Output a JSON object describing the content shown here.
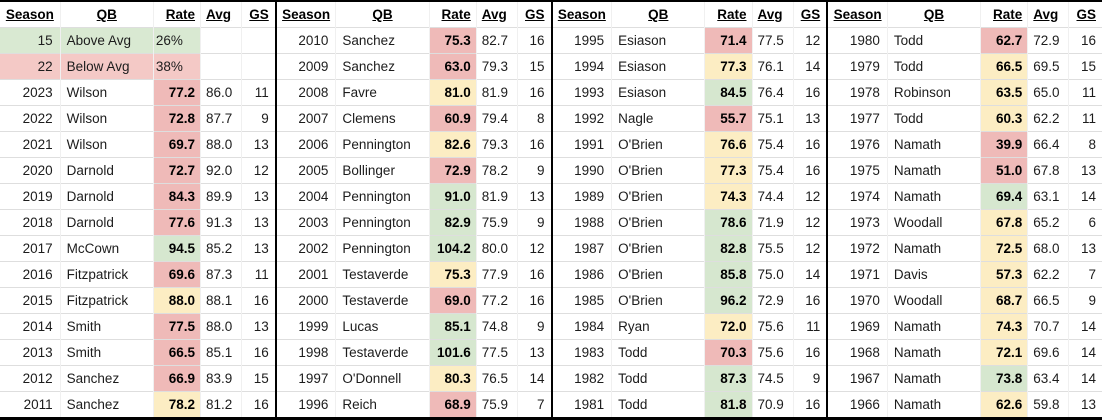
{
  "chart_data": {
    "type": "table",
    "description": "Jets starting QB passer rating by season vs league average, conditionally color-coded",
    "columns": [
      "Season",
      "QB",
      "Rate",
      "Avg",
      "GS"
    ],
    "legend": {
      "above": {
        "count": "15",
        "label": "Above Avg",
        "pct": "26%",
        "tone": "green"
      },
      "below": {
        "count": "22",
        "label": "Below Avg",
        "pct": "38%",
        "tone": "red"
      }
    },
    "colors": {
      "rate_above": "#d6e7cf",
      "rate_near": "#fcedc3",
      "rate_below": "#efbab8",
      "summary_green": "#d9e9d2",
      "summary_red": "#f4c9c6",
      "grid_line": "#dedede",
      "panel_border": "#000000"
    },
    "panels": [
      {
        "rows": [
          {
            "summary": true,
            "season": "15",
            "qb": "Above Avg",
            "rate": "26%",
            "avg": "",
            "gs": "",
            "tone": "green"
          },
          {
            "summary": true,
            "season": "22",
            "qb": "Below Avg",
            "rate": "38%",
            "avg": "",
            "gs": "",
            "tone": "red"
          },
          {
            "season": "2023",
            "qb": "Wilson",
            "rate": "77.2",
            "avg": "86.0",
            "gs": "11",
            "tone": "red"
          },
          {
            "season": "2022",
            "qb": "Wilson",
            "rate": "72.8",
            "avg": "87.7",
            "gs": "9",
            "tone": "red"
          },
          {
            "season": "2021",
            "qb": "Wilson",
            "rate": "69.7",
            "avg": "88.0",
            "gs": "13",
            "tone": "red"
          },
          {
            "season": "2020",
            "qb": "Darnold",
            "rate": "72.7",
            "avg": "92.0",
            "gs": "12",
            "tone": "red"
          },
          {
            "season": "2019",
            "qb": "Darnold",
            "rate": "84.3",
            "avg": "89.9",
            "gs": "13",
            "tone": "red"
          },
          {
            "season": "2018",
            "qb": "Darnold",
            "rate": "77.6",
            "avg": "91.3",
            "gs": "13",
            "tone": "red"
          },
          {
            "season": "2017",
            "qb": "McCown",
            "rate": "94.5",
            "avg": "85.2",
            "gs": "13",
            "tone": "green"
          },
          {
            "season": "2016",
            "qb": "Fitzpatrick",
            "rate": "69.6",
            "avg": "87.3",
            "gs": "11",
            "tone": "red"
          },
          {
            "season": "2015",
            "qb": "Fitzpatrick",
            "rate": "88.0",
            "avg": "88.1",
            "gs": "16",
            "tone": "yellow"
          },
          {
            "season": "2014",
            "qb": "Smith",
            "rate": "77.5",
            "avg": "88.0",
            "gs": "13",
            "tone": "red"
          },
          {
            "season": "2013",
            "qb": "Smith",
            "rate": "66.5",
            "avg": "85.1",
            "gs": "16",
            "tone": "red"
          },
          {
            "season": "2012",
            "qb": "Sanchez",
            "rate": "66.9",
            "avg": "83.9",
            "gs": "15",
            "tone": "red"
          },
          {
            "season": "2011",
            "qb": "Sanchez",
            "rate": "78.2",
            "avg": "81.2",
            "gs": "16",
            "tone": "yellow"
          }
        ]
      },
      {
        "rows": [
          {
            "season": "2010",
            "qb": "Sanchez",
            "rate": "75.3",
            "avg": "82.7",
            "gs": "16",
            "tone": "red"
          },
          {
            "season": "2009",
            "qb": "Sanchez",
            "rate": "63.0",
            "avg": "79.3",
            "gs": "15",
            "tone": "red"
          },
          {
            "season": "2008",
            "qb": "Favre",
            "rate": "81.0",
            "avg": "81.9",
            "gs": "16",
            "tone": "yellow"
          },
          {
            "season": "2007",
            "qb": "Clemens",
            "rate": "60.9",
            "avg": "79.4",
            "gs": "8",
            "tone": "red"
          },
          {
            "season": "2006",
            "qb": "Pennington",
            "rate": "82.6",
            "avg": "79.3",
            "gs": "16",
            "tone": "yellow"
          },
          {
            "season": "2005",
            "qb": "Bollinger",
            "rate": "72.9",
            "avg": "78.2",
            "gs": "9",
            "tone": "red"
          },
          {
            "season": "2004",
            "qb": "Pennington",
            "rate": "91.0",
            "avg": "81.9",
            "gs": "13",
            "tone": "green"
          },
          {
            "season": "2003",
            "qb": "Pennington",
            "rate": "82.9",
            "avg": "75.9",
            "gs": "9",
            "tone": "green"
          },
          {
            "season": "2002",
            "qb": "Pennington",
            "rate": "104.2",
            "avg": "80.0",
            "gs": "12",
            "tone": "green"
          },
          {
            "season": "2001",
            "qb": "Testaverde",
            "rate": "75.3",
            "avg": "77.9",
            "gs": "16",
            "tone": "yellow"
          },
          {
            "season": "2000",
            "qb": "Testaverde",
            "rate": "69.0",
            "avg": "77.2",
            "gs": "16",
            "tone": "red"
          },
          {
            "season": "1999",
            "qb": "Lucas",
            "rate": "85.1",
            "avg": "74.8",
            "gs": "9",
            "tone": "green"
          },
          {
            "season": "1998",
            "qb": "Testaverde",
            "rate": "101.6",
            "avg": "77.5",
            "gs": "13",
            "tone": "green"
          },
          {
            "season": "1997",
            "qb": "O'Donnell",
            "rate": "80.3",
            "avg": "76.5",
            "gs": "14",
            "tone": "yellow"
          },
          {
            "season": "1996",
            "qb": "Reich",
            "rate": "68.9",
            "avg": "75.9",
            "gs": "7",
            "tone": "red"
          }
        ]
      },
      {
        "rows": [
          {
            "season": "1995",
            "qb": "Esiason",
            "rate": "71.4",
            "avg": "77.5",
            "gs": "12",
            "tone": "red"
          },
          {
            "season": "1994",
            "qb": "Esiason",
            "rate": "77.3",
            "avg": "76.1",
            "gs": "14",
            "tone": "yellow"
          },
          {
            "season": "1993",
            "qb": "Esiason",
            "rate": "84.5",
            "avg": "76.4",
            "gs": "16",
            "tone": "green"
          },
          {
            "season": "1992",
            "qb": "Nagle",
            "rate": "55.7",
            "avg": "75.1",
            "gs": "13",
            "tone": "red"
          },
          {
            "season": "1991",
            "qb": "O'Brien",
            "rate": "76.6",
            "avg": "75.4",
            "gs": "16",
            "tone": "yellow"
          },
          {
            "season": "1990",
            "qb": "O'Brien",
            "rate": "77.3",
            "avg": "75.4",
            "gs": "16",
            "tone": "yellow"
          },
          {
            "season": "1989",
            "qb": "O'Brien",
            "rate": "74.3",
            "avg": "74.4",
            "gs": "12",
            "tone": "yellow"
          },
          {
            "season": "1988",
            "qb": "O'Brien",
            "rate": "78.6",
            "avg": "71.9",
            "gs": "12",
            "tone": "green"
          },
          {
            "season": "1987",
            "qb": "O'Brien",
            "rate": "82.8",
            "avg": "75.5",
            "gs": "12",
            "tone": "green"
          },
          {
            "season": "1986",
            "qb": "O'Brien",
            "rate": "85.8",
            "avg": "75.0",
            "gs": "14",
            "tone": "green"
          },
          {
            "season": "1985",
            "qb": "O'Brien",
            "rate": "96.2",
            "avg": "72.9",
            "gs": "16",
            "tone": "green"
          },
          {
            "season": "1984",
            "qb": "Ryan",
            "rate": "72.0",
            "avg": "75.6",
            "gs": "11",
            "tone": "yellow"
          },
          {
            "season": "1983",
            "qb": "Todd",
            "rate": "70.3",
            "avg": "75.6",
            "gs": "16",
            "tone": "red"
          },
          {
            "season": "1982",
            "qb": "Todd",
            "rate": "87.3",
            "avg": "74.5",
            "gs": "9",
            "tone": "green"
          },
          {
            "season": "1981",
            "qb": "Todd",
            "rate": "81.8",
            "avg": "70.9",
            "gs": "16",
            "tone": "green"
          }
        ]
      },
      {
        "rows": [
          {
            "season": "1980",
            "qb": "Todd",
            "rate": "62.7",
            "avg": "72.9",
            "gs": "16",
            "tone": "red"
          },
          {
            "season": "1979",
            "qb": "Todd",
            "rate": "66.5",
            "avg": "69.5",
            "gs": "15",
            "tone": "yellow"
          },
          {
            "season": "1978",
            "qb": "Robinson",
            "rate": "63.5",
            "avg": "65.0",
            "gs": "11",
            "tone": "yellow"
          },
          {
            "season": "1977",
            "qb": "Todd",
            "rate": "60.3",
            "avg": "62.2",
            "gs": "11",
            "tone": "yellow"
          },
          {
            "season": "1976",
            "qb": "Namath",
            "rate": "39.9",
            "avg": "66.4",
            "gs": "8",
            "tone": "red"
          },
          {
            "season": "1975",
            "qb": "Namath",
            "rate": "51.0",
            "avg": "67.8",
            "gs": "13",
            "tone": "red"
          },
          {
            "season": "1974",
            "qb": "Namath",
            "rate": "69.4",
            "avg": "63.1",
            "gs": "14",
            "tone": "green"
          },
          {
            "season": "1973",
            "qb": "Woodall",
            "rate": "67.8",
            "avg": "65.2",
            "gs": "6",
            "tone": "yellow"
          },
          {
            "season": "1972",
            "qb": "Namath",
            "rate": "72.5",
            "avg": "68.0",
            "gs": "13",
            "tone": "yellow"
          },
          {
            "season": "1971",
            "qb": "Davis",
            "rate": "57.3",
            "avg": "62.2",
            "gs": "7",
            "tone": "yellow"
          },
          {
            "season": "1970",
            "qb": "Woodall",
            "rate": "68.7",
            "avg": "66.5",
            "gs": "9",
            "tone": "yellow"
          },
          {
            "season": "1969",
            "qb": "Namath",
            "rate": "74.3",
            "avg": "70.7",
            "gs": "14",
            "tone": "yellow"
          },
          {
            "season": "1968",
            "qb": "Namath",
            "rate": "72.1",
            "avg": "69.6",
            "gs": "14",
            "tone": "yellow"
          },
          {
            "season": "1967",
            "qb": "Namath",
            "rate": "73.8",
            "avg": "63.4",
            "gs": "14",
            "tone": "green"
          },
          {
            "season": "1966",
            "qb": "Namath",
            "rate": "62.6",
            "avg": "59.8",
            "gs": "13",
            "tone": "yellow"
          }
        ]
      }
    ]
  }
}
